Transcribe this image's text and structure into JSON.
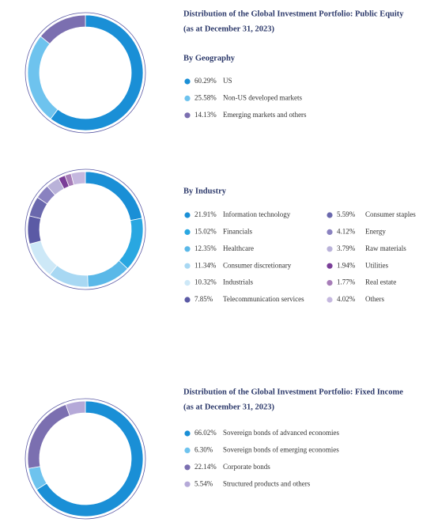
{
  "chart_data": [
    {
      "type": "pie",
      "title": "Distribution of the Global Investment Portfolio: Public Equity",
      "subtitle": "(as at December 31, 2023)",
      "heading": "By Geography",
      "categories": [
        "US",
        "Non-US developed markets",
        "Emerging markets and others"
      ],
      "values": [
        60.29,
        25.58,
        14.13
      ],
      "value_labels": [
        "60.29%",
        "25.58%",
        "14.13%"
      ],
      "colors": [
        "#1a8fd6",
        "#6ec3ee",
        "#7b6fb0"
      ]
    },
    {
      "type": "pie",
      "heading": "By Industry",
      "categories": [
        "Information technology",
        "Financials",
        "Healthcare",
        "Consumer discretionary",
        "Industrials",
        "Telecommunication services",
        "Consumer staples",
        "Energy",
        "Raw materials",
        "Utilities",
        "Real estate",
        "Others"
      ],
      "values": [
        21.91,
        15.02,
        12.35,
        11.34,
        10.32,
        7.85,
        5.59,
        4.12,
        3.79,
        1.94,
        1.77,
        4.02
      ],
      "value_labels": [
        "21.91%",
        "15.02%",
        "12.35%",
        "11.34%",
        "10.32%",
        "7.85%",
        "5.59%",
        "4.12%",
        "3.79%",
        "1.94%",
        "1.77%",
        "4.02%"
      ],
      "colors": [
        "#1a8fd6",
        "#29a7e1",
        "#5ab8e8",
        "#a8d8f3",
        "#cde8f7",
        "#5b5aa5",
        "#6a68ad",
        "#8a82c0",
        "#b9b2d9",
        "#7a3e98",
        "#a77db8",
        "#c5b8df"
      ]
    },
    {
      "type": "pie",
      "title": "Distribution of the Global Investment Portfolio: Fixed Income",
      "subtitle": "(as at December 31, 2023)",
      "categories": [
        "Sovereign bonds of advanced economies",
        "Sovereign bonds of emerging economies",
        "Corporate bonds",
        "Structured products and others"
      ],
      "values": [
        66.02,
        6.3,
        22.14,
        5.54
      ],
      "value_labels": [
        "66.02%",
        "6.30%",
        "22.14%",
        "5.54%"
      ],
      "colors": [
        "#1a8fd6",
        "#6ec3ee",
        "#7b6fb0",
        "#b5a9d8"
      ]
    }
  ]
}
